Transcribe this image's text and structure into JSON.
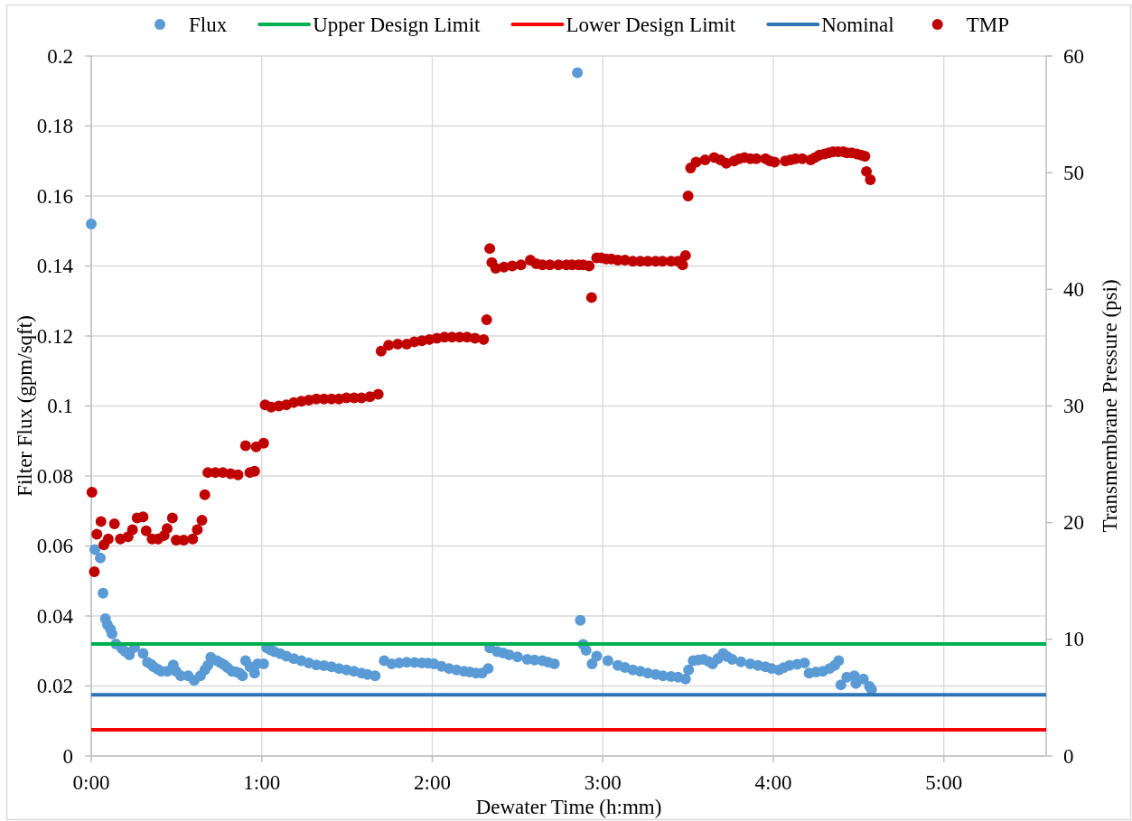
{
  "chart_data": {
    "type": "scatter",
    "xlabel": "Dewater Time (h:mm)",
    "ylabel": "Filter Flux (gpm/sqft)",
    "y2label": "Transmembrane Pressure (psi)",
    "xlim": [
      0,
      5.6
    ],
    "xticks": [
      {
        "value": 0,
        "label": "0:00"
      },
      {
        "value": 1,
        "label": "1:00"
      },
      {
        "value": 2,
        "label": "2:00"
      },
      {
        "value": 3,
        "label": "3:00"
      },
      {
        "value": 4,
        "label": "4:00"
      },
      {
        "value": 5,
        "label": "5:00"
      }
    ],
    "ylim": [
      0,
      0.2
    ],
    "yticks": [
      0,
      0.02,
      0.04,
      0.06,
      0.08,
      0.1,
      0.12,
      0.14,
      0.16,
      0.18,
      0.2
    ],
    "y2lim": [
      0,
      60
    ],
    "y2ticks": [
      0,
      10,
      20,
      30,
      40,
      50,
      60
    ],
    "grid": true,
    "legend": "top",
    "marker": "circle",
    "series": [
      {
        "name": "Flux",
        "color": "#5b9bd5",
        "x": [
          0,
          0.021,
          0.053,
          0.069,
          0.083,
          0.095,
          0.113,
          0.122,
          0.145,
          0.18,
          0.2,
          0.224,
          0.254,
          0.304,
          0.33,
          0.35,
          0.366,
          0.39,
          0.41,
          0.445,
          0.481,
          0.498,
          0.525,
          0.569,
          0.604,
          0.64,
          0.666,
          0.684,
          0.701,
          0.737,
          0.76,
          0.781,
          0.8,
          0.826,
          0.85,
          0.87,
          0.887,
          0.905,
          0.931,
          0.958,
          0.976,
          1.011,
          1.029,
          1.05,
          1.073,
          1.108,
          1.144,
          1.188,
          1.232,
          1.276,
          1.32,
          1.365,
          1.409,
          1.453,
          1.497,
          1.541,
          1.585,
          1.62,
          1.665,
          1.718,
          1.762,
          1.806,
          1.85,
          1.895,
          1.939,
          1.975,
          2.01,
          2.054,
          2.098,
          2.142,
          2.186,
          2.22,
          2.257,
          2.292,
          2.328,
          2.337,
          2.381,
          2.416,
          2.451,
          2.5,
          2.557,
          2.6,
          2.646,
          2.68,
          2.716,
          2.851,
          2.868,
          2.884,
          2.902,
          2.937,
          2.964,
          3.03,
          3.088,
          3.13,
          3.176,
          3.22,
          3.264,
          3.31,
          3.353,
          3.4,
          3.441,
          3.485,
          3.503,
          3.53,
          3.56,
          3.591,
          3.62,
          3.644,
          3.675,
          3.706,
          3.73,
          3.759,
          3.81,
          3.865,
          3.91,
          3.954,
          3.99,
          4.033,
          4.06,
          4.095,
          4.14,
          4.183,
          4.21,
          4.25,
          4.29,
          4.33,
          4.36,
          4.383,
          4.396,
          4.431,
          4.475,
          4.484,
          4.528,
          4.564,
          4.576
        ],
        "values": [
          0.152,
          0.059,
          0.0566,
          0.0465,
          0.0392,
          0.0375,
          0.0362,
          0.0349,
          0.032,
          0.0307,
          0.0298,
          0.0289,
          0.031,
          0.0293,
          0.0268,
          0.0262,
          0.0255,
          0.0248,
          0.0242,
          0.0242,
          0.026,
          0.0242,
          0.0229,
          0.0229,
          0.0216,
          0.0229,
          0.0246,
          0.0259,
          0.0282,
          0.0272,
          0.0266,
          0.026,
          0.0252,
          0.0242,
          0.024,
          0.0237,
          0.0229,
          0.0272,
          0.0255,
          0.0237,
          0.0263,
          0.0263,
          0.0309,
          0.0303,
          0.0298,
          0.0292,
          0.0285,
          0.0278,
          0.0272,
          0.0266,
          0.026,
          0.0258,
          0.0255,
          0.025,
          0.0246,
          0.0242,
          0.0237,
          0.0233,
          0.0229,
          0.0272,
          0.0263,
          0.0266,
          0.0268,
          0.0267,
          0.0266,
          0.0265,
          0.0263,
          0.0256,
          0.025,
          0.0246,
          0.0242,
          0.024,
          0.0237,
          0.0237,
          0.025,
          0.0309,
          0.0298,
          0.0294,
          0.0289,
          0.0283,
          0.0276,
          0.0274,
          0.0272,
          0.0268,
          0.0263,
          0.1952,
          0.0388,
          0.0319,
          0.0302,
          0.0263,
          0.0285,
          0.0272,
          0.0259,
          0.0253,
          0.0246,
          0.0242,
          0.0237,
          0.0233,
          0.0229,
          0.0227,
          0.0225,
          0.022,
          0.0246,
          0.0272,
          0.0274,
          0.0276,
          0.027,
          0.0263,
          0.0278,
          0.0293,
          0.0284,
          0.0276,
          0.0269,
          0.0263,
          0.0259,
          0.0255,
          0.025,
          0.0246,
          0.0252,
          0.0259,
          0.0262,
          0.0266,
          0.0237,
          0.024,
          0.0242,
          0.025,
          0.0259,
          0.0272,
          0.0203,
          0.0225,
          0.0229,
          0.0207,
          0.022,
          0.0199,
          0.019
        ]
      },
      {
        "name": "Upper Design Limit",
        "type": "line",
        "color": "#00b050",
        "marker": "none",
        "x": [
          0,
          5.6
        ],
        "values": [
          0.032,
          0.032
        ]
      },
      {
        "name": "Lower Design Limit",
        "type": "line",
        "color": "#ff0000",
        "marker": "none",
        "x": [
          0,
          5.6
        ],
        "values": [
          0.0075,
          0.0075
        ]
      },
      {
        "name": "Nominal",
        "type": "line",
        "color": "#2e75b6",
        "marker": "none",
        "x": [
          0,
          5.6
        ],
        "values": [
          0.0175,
          0.0175
        ]
      },
      {
        "name": "TMP",
        "axis": "y2",
        "color": "#c00000",
        "x": [
          0.004,
          0.018,
          0.033,
          0.057,
          0.074,
          0.1,
          0.136,
          0.171,
          0.216,
          0.242,
          0.269,
          0.304,
          0.322,
          0.357,
          0.392,
          0.428,
          0.445,
          0.476,
          0.498,
          0.542,
          0.595,
          0.622,
          0.649,
          0.666,
          0.684,
          0.728,
          0.772,
          0.817,
          0.861,
          0.905,
          0.93,
          0.958,
          0.967,
          1.011,
          1.02,
          1.055,
          1.1,
          1.144,
          1.188,
          1.232,
          1.276,
          1.32,
          1.365,
          1.409,
          1.453,
          1.497,
          1.541,
          1.585,
          1.634,
          1.683,
          1.7,
          1.744,
          1.797,
          1.85,
          1.895,
          1.939,
          1.983,
          2.027,
          2.071,
          2.116,
          2.16,
          2.204,
          2.25,
          2.301,
          2.319,
          2.337,
          2.349,
          2.372,
          2.42,
          2.469,
          2.52,
          2.575,
          2.61,
          2.646,
          2.69,
          2.74,
          2.787,
          2.82,
          2.858,
          2.885,
          2.92,
          2.934,
          2.964,
          2.99,
          3.02,
          3.05,
          3.088,
          3.13,
          3.176,
          3.22,
          3.264,
          3.31,
          3.35,
          3.4,
          3.441,
          3.468,
          3.485,
          3.5,
          3.515,
          3.547,
          3.6,
          3.653,
          3.69,
          3.724,
          3.77,
          3.8,
          3.83,
          3.865,
          3.9,
          3.954,
          3.98,
          4.007,
          4.07,
          4.1,
          4.13,
          4.17,
          4.219,
          4.245,
          4.27,
          4.3,
          4.325,
          4.35,
          4.38,
          4.41,
          4.431,
          4.46,
          4.49,
          4.515,
          4.537,
          4.546,
          4.569
        ],
        "values": [
          22.6,
          15.8,
          19,
          20.1,
          18.1,
          18.6,
          19.9,
          18.6,
          18.8,
          19.4,
          20.4,
          20.5,
          19.3,
          18.6,
          18.6,
          18.9,
          19.5,
          20.4,
          18.5,
          18.5,
          18.6,
          19.4,
          20.2,
          22.4,
          24.3,
          24.3,
          24.3,
          24.2,
          24.1,
          26.6,
          24.3,
          24.4,
          26.5,
          26.8,
          30.1,
          29.9,
          30,
          30.1,
          30.3,
          30.4,
          30.5,
          30.6,
          30.6,
          30.6,
          30.6,
          30.7,
          30.7,
          30.7,
          30.8,
          31,
          34.7,
          35.2,
          35.3,
          35.3,
          35.5,
          35.6,
          35.7,
          35.8,
          35.9,
          35.9,
          35.9,
          35.9,
          35.8,
          35.7,
          37.4,
          43.5,
          42.3,
          41.8,
          41.9,
          42,
          42.1,
          42.5,
          42.2,
          42.1,
          42.1,
          42.1,
          42.1,
          42.1,
          42.1,
          42.1,
          42,
          39.3,
          42.7,
          42.7,
          42.6,
          42.6,
          42.5,
          42.5,
          42.4,
          42.4,
          42.4,
          42.4,
          42.4,
          42.4,
          42.4,
          42.1,
          42.9,
          48,
          50.4,
          50.9,
          51.1,
          51.3,
          51.1,
          50.8,
          51,
          51.2,
          51.3,
          51.2,
          51.2,
          51.2,
          51,
          50.9,
          51,
          51.1,
          51.2,
          51.2,
          51.1,
          51.3,
          51.5,
          51.6,
          51.7,
          51.8,
          51.8,
          51.8,
          51.7,
          51.7,
          51.6,
          51.5,
          51.4,
          50.1,
          49.4
        ]
      }
    ]
  }
}
